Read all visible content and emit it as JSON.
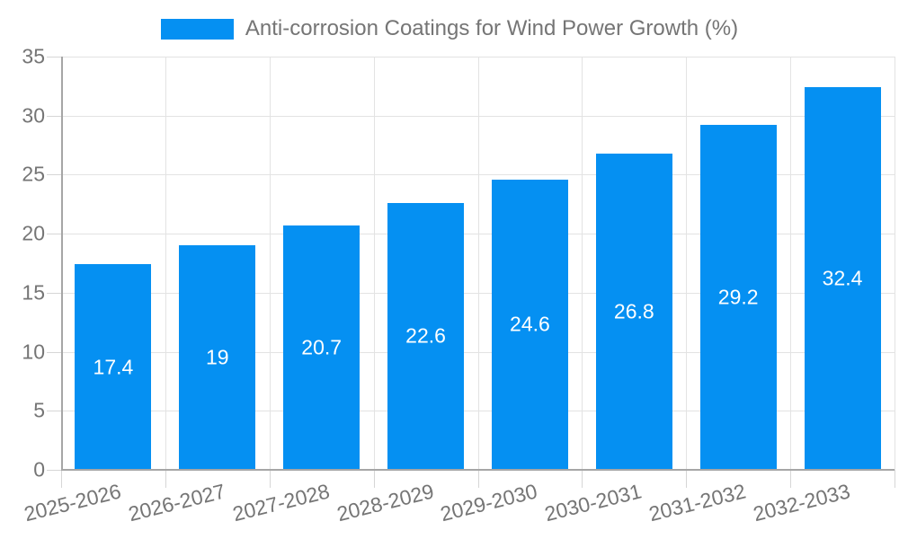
{
  "legend": {
    "label": "Anti-corrosion Coatings for Wind Power Growth (%)"
  },
  "colors": {
    "bar": "#0590f2",
    "bar_label_text": "#ffffff",
    "axis_text": "#757575",
    "axis_line": "#a6a6a6",
    "gridline": "#e3e3e3",
    "tick": "#d6d6d6",
    "background": "#ffffff"
  },
  "chart_data": {
    "type": "bar",
    "title": "Anti-corrosion Coatings for Wind Power Growth (%)",
    "categories": [
      "2025-2026",
      "2026-2027",
      "2027-2028",
      "2028-2029",
      "2029-2030",
      "2030-2031",
      "2031-2032",
      "2032-2033"
    ],
    "values": [
      17.4,
      19,
      20.7,
      22.6,
      24.6,
      26.8,
      29.2,
      32.4
    ],
    "value_labels": [
      "17.4",
      "19",
      "20.7",
      "22.6",
      "24.6",
      "26.8",
      "29.2",
      "32.4"
    ],
    "xlabel": "",
    "ylabel": "",
    "ylim": [
      0,
      35
    ],
    "yticks": [
      0,
      5,
      10,
      15,
      20,
      25,
      30,
      35
    ],
    "grid": true,
    "legend_position": "top",
    "series_name": "Anti-corrosion Coatings for Wind Power Growth (%)"
  }
}
